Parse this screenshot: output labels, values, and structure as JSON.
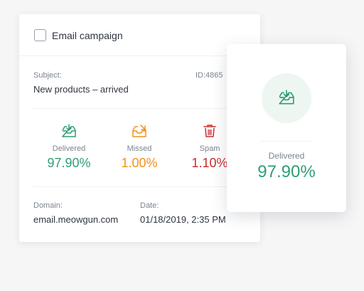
{
  "campaign": {
    "title": "Email campaign",
    "subject_label": "Subject:",
    "subject": "New products – arrived",
    "id_text": "ID:4865"
  },
  "stats": [
    {
      "label": "Delivered",
      "value": "97.90%",
      "color": "#2f9e73",
      "icon": "inbox-download-icon"
    },
    {
      "label": "Missed",
      "value": "1.00%",
      "color": "#f2921c",
      "icon": "inbox-missed-icon"
    },
    {
      "label": "Spam",
      "value": "1.10%",
      "color": "#cc2b2b",
      "icon": "trash-icon"
    }
  ],
  "footer": {
    "domain_label": "Domain:",
    "domain": "email.meowgun.com",
    "date_label": "Date:",
    "date": "01/18/2019, 2:35 PM"
  },
  "popup": {
    "label": "Delivered",
    "value": "97.90%",
    "icon": "inbox-download-icon"
  }
}
